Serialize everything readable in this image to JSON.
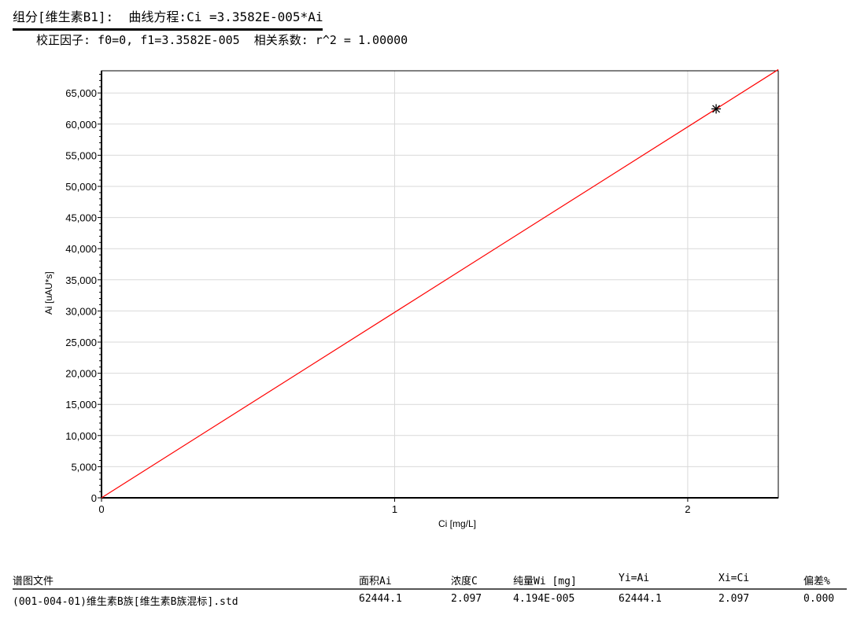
{
  "header": {
    "line1": "组分[维生素B1]:  曲线方程:Ci =3.3582E-005*Ai",
    "line2": "校正因子: f0=0, f1=3.3582E-005  相关系数: r^2 = 1.00000"
  },
  "chart_data": {
    "type": "scatter",
    "xlabel": "Ci [mg/L]",
    "ylabel": "Ai [uAU*s]",
    "xlim": [
      0,
      2.309
    ],
    "ylim": [
      0,
      68560
    ],
    "xticks": [
      "0",
      "1",
      "2"
    ],
    "xtick_values": [
      0,
      1,
      2
    ],
    "yticks": [
      "0",
      "5,000",
      "10,000",
      "15,000",
      "20,000",
      "25,000",
      "30,000",
      "35,000",
      "40,000",
      "45,000",
      "50,000",
      "55,000",
      "60,000",
      "65,000"
    ],
    "ytick_values": [
      0,
      5000,
      10000,
      15000,
      20000,
      25000,
      30000,
      35000,
      40000,
      45000,
      50000,
      55000,
      60000,
      65000
    ],
    "grid": true,
    "fit_line": {
      "slope": 29777.86,
      "intercept": 0,
      "color": "#ff0000"
    },
    "points": [
      {
        "x": 2.097,
        "y": 62444.1,
        "marker": "asterisk"
      }
    ]
  },
  "table": {
    "headers": [
      "谱图文件",
      "面积Ai",
      "浓度C",
      "纯量Wi [mg]",
      "Yi=Ai",
      "Xi=Ci",
      "偏差%"
    ],
    "rows": [
      [
        "(001-004-01)维生素B族[维生素B族混标].std",
        "62444.1",
        "2.097",
        "4.194E-005",
        "62444.1",
        "2.097",
        "0.000"
      ]
    ]
  }
}
